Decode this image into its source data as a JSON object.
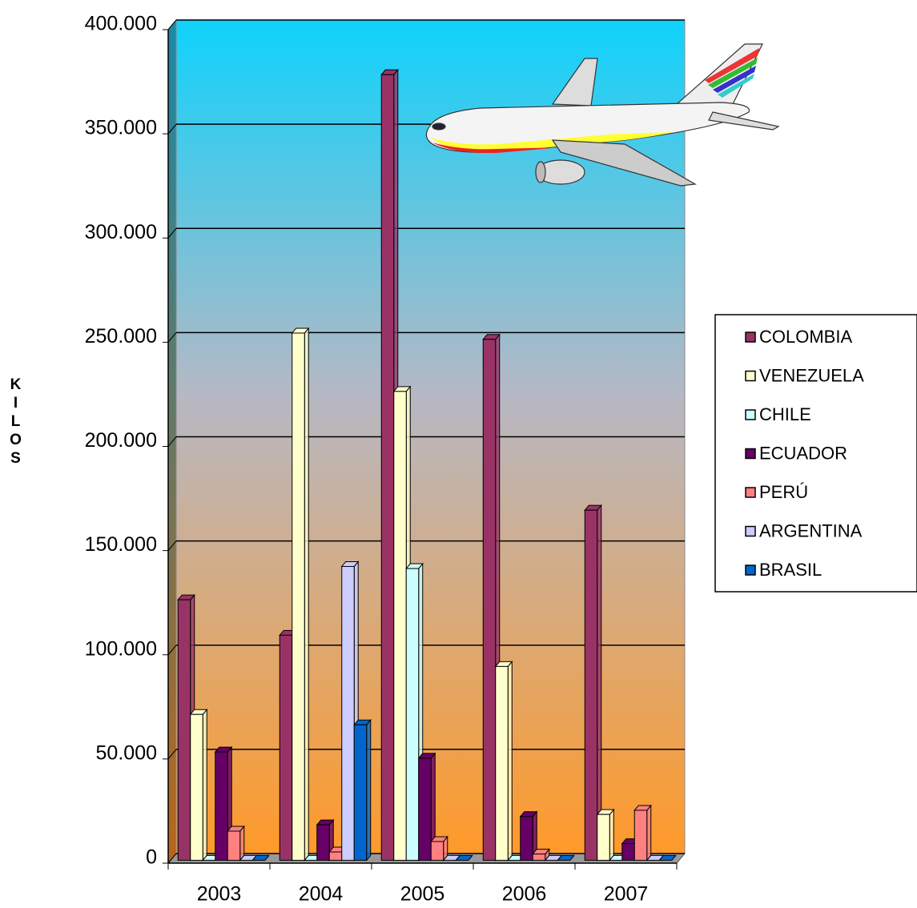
{
  "chart_data": {
    "type": "bar",
    "y_label": "KILOS",
    "categories": [
      "2003",
      "2004",
      "2005",
      "2006",
      "2007"
    ],
    "series": [
      {
        "name": "COLOMBIA",
        "color": "#993366",
        "values": [
          125000,
          108000,
          377000,
          250000,
          168000
        ]
      },
      {
        "name": "VENEZUELA",
        "color": "#ffffcc",
        "values": [
          70000,
          253000,
          225000,
          93000,
          22000
        ]
      },
      {
        "name": "CHILE",
        "color": "#ccffff",
        "values": [
          0,
          0,
          140000,
          0,
          0
        ]
      },
      {
        "name": "ECUADOR",
        "color": "#660066",
        "values": [
          52000,
          17000,
          49000,
          21000,
          8000
        ]
      },
      {
        "name": "PERÚ",
        "color": "#ff8080",
        "values": [
          14000,
          4000,
          9000,
          3000,
          24000
        ]
      },
      {
        "name": "ARGENTINA",
        "color": "#ccccff",
        "values": [
          0,
          141000,
          0,
          0,
          0
        ]
      },
      {
        "name": "BRASIL",
        "color": "#0066cc",
        "values": [
          0,
          65000,
          0,
          0,
          0
        ]
      }
    ],
    "ylim": [
      0,
      400000
    ],
    "yticks": [
      {
        "value": 0,
        "label": "0"
      },
      {
        "value": 50000,
        "label": "50.000"
      },
      {
        "value": 100000,
        "label": "100.000"
      },
      {
        "value": 150000,
        "label": "150.000"
      },
      {
        "value": 200000,
        "label": "200.000"
      },
      {
        "value": 250000,
        "label": "250.000"
      },
      {
        "value": 300000,
        "label": "300.000"
      },
      {
        "value": 350000,
        "label": "350.000"
      },
      {
        "value": 400000,
        "label": "400.000"
      }
    ],
    "grid": true,
    "legend": "right"
  }
}
